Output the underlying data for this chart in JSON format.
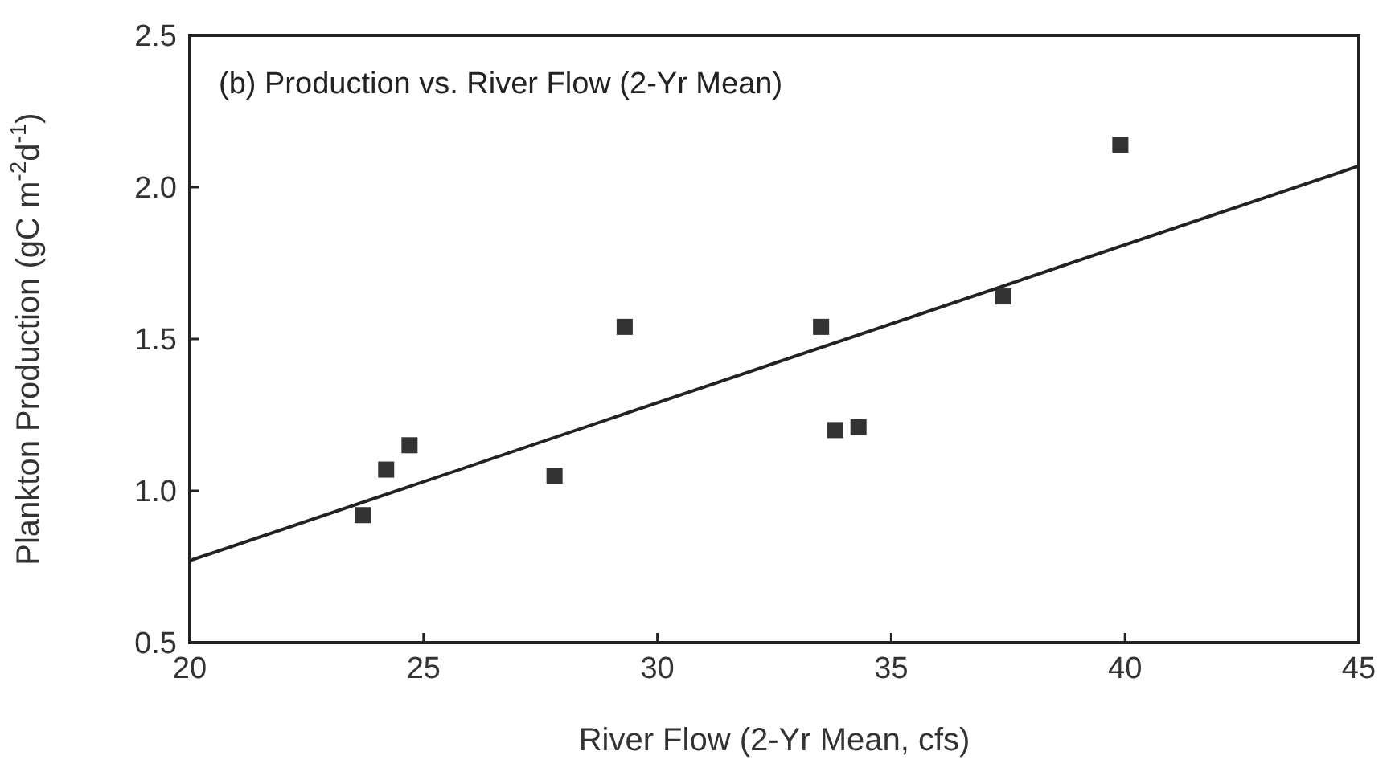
{
  "chart_data": {
    "type": "scatter",
    "title": "(b) Production vs. River Flow (2-Yr Mean)",
    "xlabel": "River Flow (2-Yr Mean, cfs)",
    "ylabel": "Plankton Production (gC m$^{-2}$d$^{-1}$)",
    "xlim": [
      20,
      45
    ],
    "ylim": [
      0.5,
      2.5
    ],
    "xticks": [
      20,
      25,
      30,
      35,
      40,
      45
    ],
    "yticks": [
      {
        "value": 0.5,
        "label": "0.5"
      },
      {
        "value": 1,
        "label": "1.0"
      },
      {
        "value": 1.5,
        "label": "1.5"
      },
      {
        "value": 2,
        "label": "2.0"
      },
      {
        "value": 2.5,
        "label": "2.5"
      }
    ],
    "grid": false,
    "series": [
      {
        "color": "#333333",
        "marker": "square",
        "x": [
          23.7,
          24.2,
          24.7,
          27.8,
          29.3,
          33.5,
          33.8,
          34.3,
          37.4,
          39.9
        ],
        "values": [
          0.92,
          1.07,
          1.15,
          1.05,
          1.54,
          1.54,
          1.2,
          1.21,
          1.64,
          2.14
        ]
      },
      {
        "type": "line",
        "color": "#222222",
        "marker": "none",
        "line_style": "solid",
        "x": [
          20,
          45
        ],
        "values": [
          0.77,
          2.07
        ]
      }
    ]
  }
}
